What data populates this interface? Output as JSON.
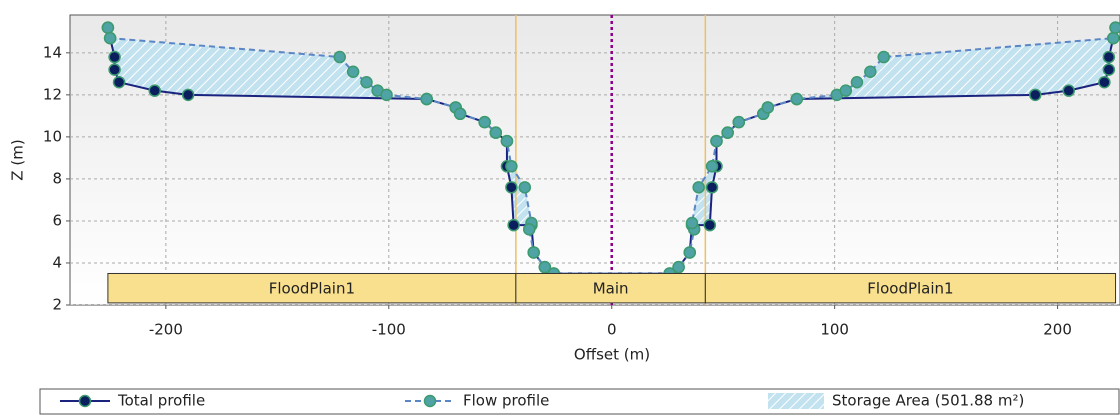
{
  "chart_data": {
    "type": "line",
    "x_label": "Offset (m)",
    "y_label": "Z (m)",
    "xlim": [
      -243,
      228
    ],
    "ylim": [
      2,
      15.8
    ],
    "xticks": [
      -200,
      -100,
      0,
      100,
      200
    ],
    "yticks": [
      2,
      4,
      6,
      8,
      10,
      12,
      14
    ],
    "grid": true,
    "series": [
      {
        "name": "Total profile",
        "color": "#1a237e",
        "x": [
          -226,
          -225,
          -223,
          -223,
          -221,
          -205,
          -190,
          -83,
          -70,
          -68,
          -57,
          -52,
          -47,
          -47,
          -45,
          -44,
          -36,
          -35,
          -30,
          -26,
          26,
          30,
          35,
          36,
          44,
          45,
          47,
          47,
          52,
          57,
          68,
          70,
          83,
          190,
          205,
          221,
          223,
          223,
          225,
          226
        ],
        "values": [
          15.2,
          14.7,
          13.8,
          13.2,
          12.6,
          12.2,
          12.0,
          11.8,
          11.4,
          11.1,
          10.7,
          10.2,
          9.8,
          8.6,
          7.6,
          5.8,
          5.8,
          4.5,
          3.8,
          3.5,
          3.5,
          3.8,
          4.5,
          5.8,
          5.8,
          7.6,
          8.6,
          9.8,
          10.2,
          10.7,
          11.1,
          11.4,
          11.8,
          12.0,
          12.2,
          12.6,
          13.2,
          13.8,
          14.7,
          15.2
        ]
      },
      {
        "name": "Flow profile",
        "color": "#5b86c6",
        "x": [
          -226,
          -225,
          -122,
          -116,
          -110,
          -105,
          -101,
          -83,
          -70,
          -68,
          -57,
          -52,
          -47,
          -45,
          -39,
          -36,
          -37,
          -35,
          -30,
          -26,
          26,
          30,
          35,
          37,
          36,
          39,
          45,
          47,
          52,
          57,
          68,
          70,
          83,
          101,
          105,
          110,
          116,
          122,
          225,
          226
        ],
        "values": [
          15.2,
          14.7,
          13.8,
          13.1,
          12.6,
          12.2,
          12.0,
          11.8,
          11.4,
          11.1,
          10.7,
          10.2,
          9.8,
          8.6,
          7.6,
          5.9,
          5.6,
          4.5,
          3.8,
          3.5,
          3.5,
          3.8,
          4.5,
          5.6,
          5.9,
          7.6,
          8.6,
          9.8,
          10.2,
          10.7,
          11.1,
          11.4,
          11.8,
          12.0,
          12.2,
          12.6,
          13.1,
          13.8,
          14.7,
          15.2
        ]
      }
    ],
    "storage_label": "Storage Area (501.88 m²)",
    "centerline": 0,
    "sections": [
      {
        "name": "FloodPlain1",
        "start": -226,
        "end": -43
      },
      {
        "name": "Main",
        "start": -43,
        "end": 42
      },
      {
        "name": "FloodPlain1",
        "start": 42,
        "end": 226
      }
    ],
    "section_bottom": 2.1,
    "section_top": 3.5
  }
}
